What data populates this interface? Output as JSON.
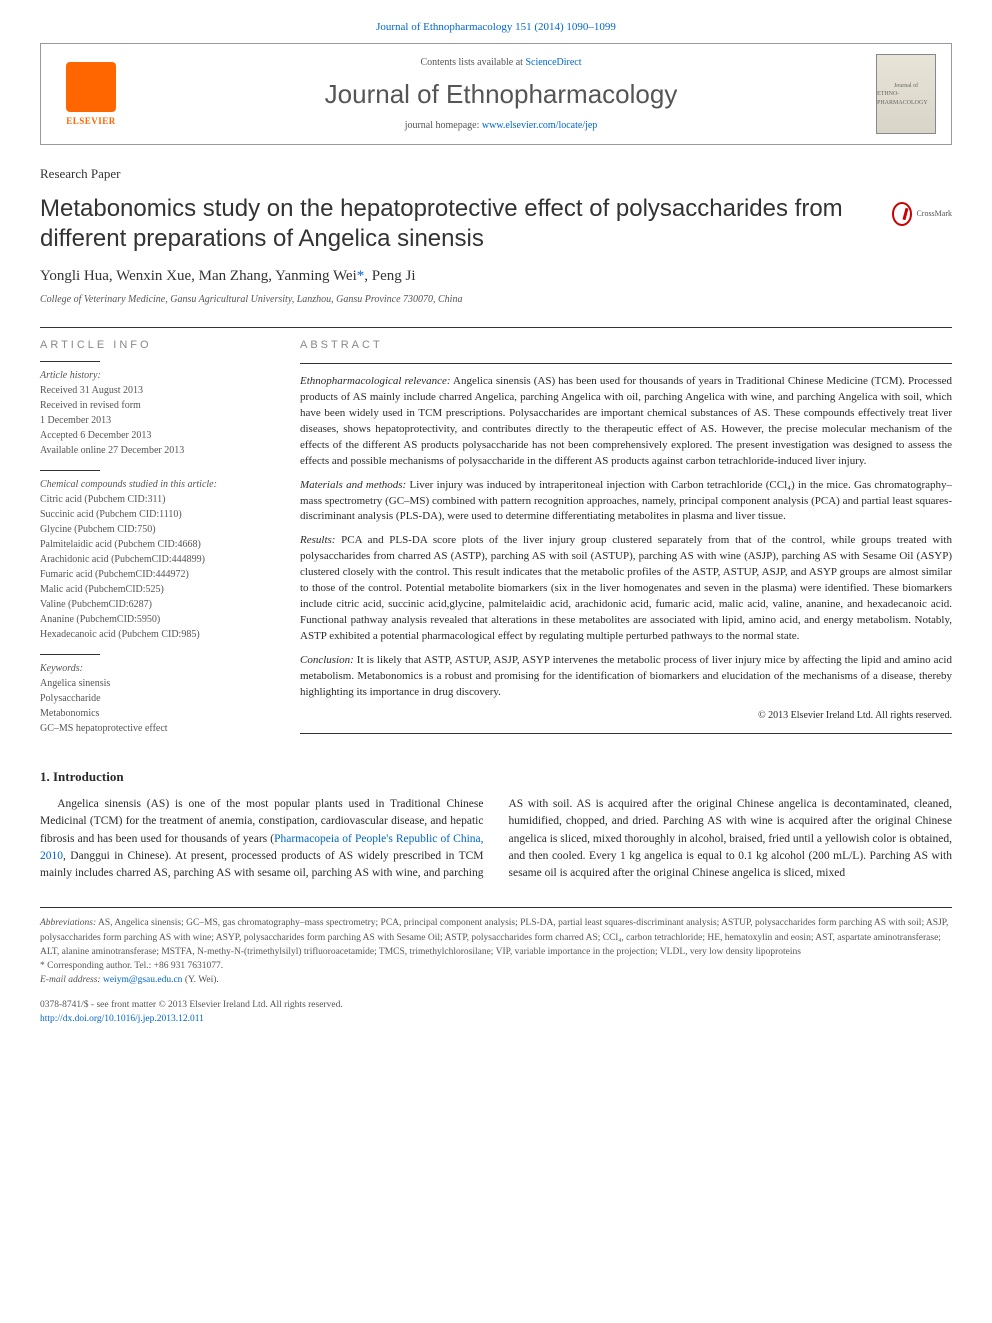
{
  "journal_ref": {
    "link_text": "Journal of Ethnopharmacology 151 (2014) 1090–1099",
    "link_color": "#0066cc"
  },
  "header": {
    "contents_prefix": "Contents lists available at ",
    "contents_link": "ScienceDirect",
    "journal_name": "Journal of Ethnopharmacology",
    "homepage_prefix": "journal homepage: ",
    "homepage_link": "www.elsevier.com/locate/jep",
    "elsevier_label": "ELSEVIER",
    "cover_text_top": "Journal of",
    "cover_text_main": "ETHNO-PHARMACOLOGY"
  },
  "doc_type": "Research Paper",
  "title": "Metabonomics study on the hepatoprotective effect of polysaccharides from different preparations of Angelica sinensis",
  "crossmark_label": "CrossMark",
  "authors_line": "Yongli Hua, Wenxin Xue, Man Zhang, Yanming Wei",
  "authors_corresp_marker": "*",
  "authors_last": ", Peng Ji",
  "affiliation": "College of Veterinary Medicine, Gansu Agricultural University, Lanzhou, Gansu Province 730070, China",
  "article_info_header": "ARTICLE INFO",
  "abstract_header": "ABSTRACT",
  "history": {
    "label": "Article history:",
    "received": "Received 31 August 2013",
    "revised": "Received in revised form",
    "revised_date": "1 December 2013",
    "accepted": "Accepted 6 December 2013",
    "online": "Available online 27 December 2013"
  },
  "compounds": {
    "label": "Chemical compounds studied in this article:",
    "items": [
      "Citric acid (Pubchem CID:311)",
      "Succinic acid (Pubchem CID:1110)",
      "Glycine (Pubchem CID:750)",
      "Palmitelaidic acid (Pubchem CID:4668)",
      "Arachidonic acid (PubchemCID:444899)",
      "Fumaric acid (PubchemCID:444972)",
      "Malic acid (PubchemCID:525)",
      "Valine (PubchemCID:6287)",
      "Ananine (PubchemCID:5950)",
      "Hexadecanoic acid (Pubchem CID:985)"
    ]
  },
  "keywords": {
    "label": "Keywords:",
    "items": [
      "Angelica sinensis",
      "Polysaccharide",
      "Metabonomics",
      "GC–MS hepatoprotective effect"
    ]
  },
  "abstract": {
    "relevance_label": "Ethnopharmacological relevance:",
    "relevance_text": " Angelica sinensis (AS) has been used for thousands of years in Traditional Chinese Medicine (TCM). Processed products of AS mainly include charred Angelica, parching Angelica with oil, parching Angelica with wine, and parching Angelica with soil, which have been widely used in TCM prescriptions. Polysaccharides are important chemical substances of AS. These compounds effectively treat liver diseases, shows hepatoprotectivity, and contributes directly to the therapeutic effect of AS. However, the precise molecular mechanism of the effects of the different AS products polysaccharide has not been comprehensively explored. The present investigation was designed to assess the effects and possible mechanisms of polysaccharide in the different AS products against carbon tetrachloride-induced liver injury.",
    "methods_label": "Materials and methods:",
    "methods_text": " Liver injury was induced by intraperitoneal injection with Carbon tetrachloride (CCl₄) in the mice. Gas chromatography–mass spectrometry (GC–MS) combined with pattern recognition approaches, namely, principal component analysis (PCA) and partial least squares-discriminant analysis (PLS-DA), were used to determine differentiating metabolites in plasma and liver tissue.",
    "results_label": "Results:",
    "results_text": " PCA and PLS-DA score plots of the liver injury group clustered separately from that of the control, while groups treated with polysaccharides from charred AS (ASTP), parching AS with soil (ASTUP), parching AS with wine (ASJP), parching AS with Sesame Oil (ASYP) clustered closely with the control. This result indicates that the metabolic profiles of the ASTP, ASTUP, ASJP, and ASYP groups are almost similar to those of the control. Potential metabolite biomarkers (six in the liver homogenates and seven in the plasma) were identified. These biomarkers include citric acid, succinic acid,glycine, palmitelaidic acid, arachidonic acid, fumaric acid, malic acid, valine, ananine, and hexadecanoic acid. Functional pathway analysis revealed that alterations in these metabolites are associated with lipid, amino acid, and energy metabolism. Notably, ASTP exhibited a potential pharmacological effect by regulating multiple perturbed pathways to the normal state.",
    "conclusion_label": "Conclusion:",
    "conclusion_text": " It is likely that ASTP, ASTUP, ASJP, ASYP intervenes the metabolic process of liver injury mice by affecting the lipid and amino acid metabolism. Metabonomics is a robust and promising for the identification of biomarkers and elucidation of the mechanisms of a disease, thereby highlighting its importance in drug discovery.",
    "copyright": "© 2013 Elsevier Ireland Ltd. All rights reserved."
  },
  "intro": {
    "heading": "1. Introduction",
    "para1_pre": "Angelica sinensis (AS) is one of the most popular plants used in Traditional Chinese Medicinal (TCM) for the treatment of anemia, constipation, cardiovascular disease, and hepatic fibrosis and has been used for thousands of years (",
    "para1_link": "Pharmacopeia of People's Republic of China, 2010",
    "para1_post": ", Danggui in Chinese). At present, processed products of AS widely prescribed in TCM mainly includes charred AS, parching AS with sesame oil, parching AS with wine, and parching AS with soil. AS is acquired after the original Chinese angelica is decontaminated, cleaned, humidified, chopped, and dried. Parching AS with wine is acquired after the original Chinese angelica is sliced, mixed thoroughly in alcohol, braised, fried until a yellowish color is obtained, and then cooled. Every 1 kg angelica is equal to 0.1 kg alcohol (200 mL/L). Parching AS with sesame oil is acquired after the original Chinese angelica is sliced, mixed"
  },
  "footer": {
    "abbrev_label": "Abbreviations:",
    "abbrev_text": " AS, Angelica sinensis; GC–MS, gas chromatography–mass spectrometry; PCA, principal component analysis; PLS-DA, partial least squares-discriminant analysis; ASTUP, polysaccharides form parching AS with soil; ASJP, polysaccharides form parching AS with wine; ASYP, polysaccharides form parching AS with Sesame Oil; ASTP, polysaccharides form charred AS; CCl₄, carbon tetrachloride; HE, hematoxylin and eosin; AST, aspartate aminotransferase; ALT, alanine aminotransferase; MSTFA, N-methy-N-(trimethylsilyl) trifluoroacetamide; TMCS, trimethylchlorosilane; VIP, variable importance in the projection; VLDL, very low density lipoproteins",
    "corresp_label": "* Corresponding author. Tel.: +86 931 7631077.",
    "email_label": "E-mail address: ",
    "email_value": "weiym@gsau.edu.cn",
    "email_suffix": " (Y. Wei).",
    "issn_line": "0378-8741/$ - see front matter © 2013 Elsevier Ireland Ltd. All rights reserved.",
    "doi_link": "http://dx.doi.org/10.1016/j.jep.2013.12.011"
  },
  "colors": {
    "link": "#0066cc",
    "elsevier_orange": "#ff6600",
    "text": "#2a2a2a",
    "muted": "#555555",
    "border": "#999999"
  }
}
